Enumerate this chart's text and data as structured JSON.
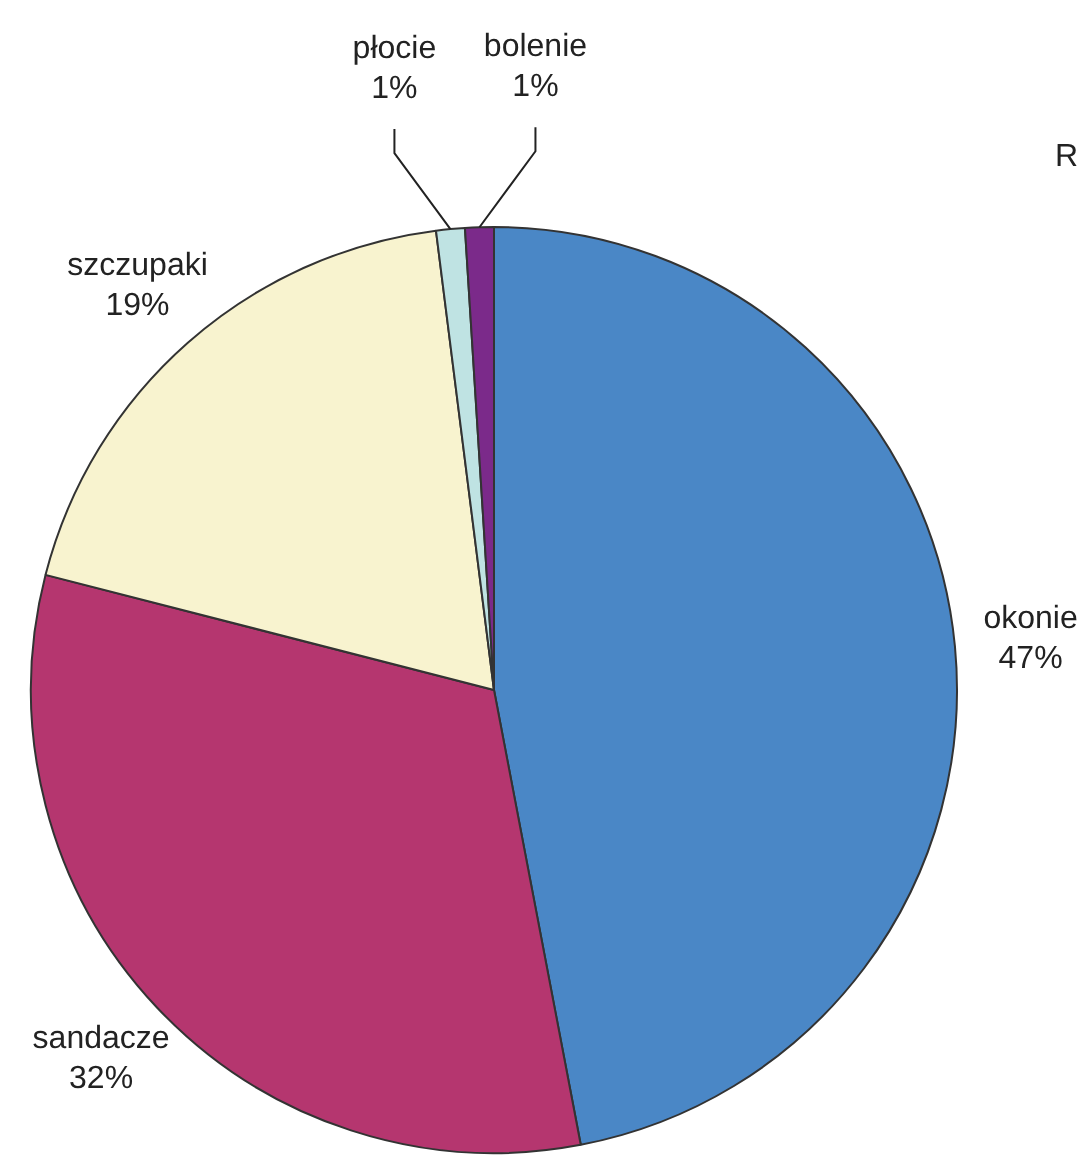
{
  "chart_data": {
    "type": "pie",
    "categories": [
      "okonie",
      "sandacze",
      "szczupaki",
      "płocie",
      "bolenie"
    ],
    "values": [
      47,
      32,
      19,
      1,
      1
    ],
    "colors": [
      "#4a87c6",
      "#b5366f",
      "#f8f3cf",
      "#bfe3e3",
      "#7b2a8a"
    ],
    "value_labels": [
      "47%",
      "32%",
      "19%",
      "1%",
      "1%"
    ],
    "legend": false,
    "annotations": [
      "R"
    ]
  }
}
